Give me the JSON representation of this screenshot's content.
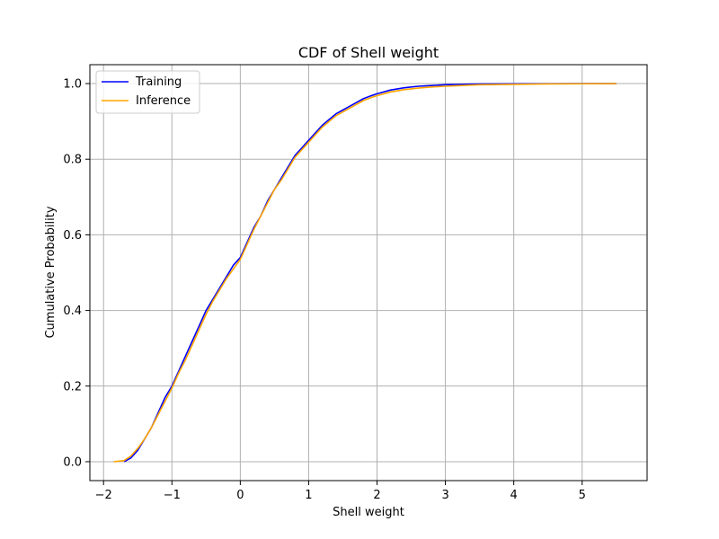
{
  "chart_data": {
    "type": "line",
    "title": "CDF of Shell weight",
    "xlabel": "Shell weight",
    "ylabel": "Cumulative Probability",
    "xlim": [
      -2.2,
      5.95
    ],
    "ylim": [
      -0.05,
      1.05
    ],
    "xticks": [
      -2,
      -1,
      0,
      1,
      2,
      3,
      4,
      5
    ],
    "yticks": [
      0.0,
      0.2,
      0.4,
      0.6,
      0.8,
      1.0
    ],
    "xtick_labels": [
      "−2",
      "−1",
      "0",
      "1",
      "2",
      "3",
      "4",
      "5"
    ],
    "ytick_labels": [
      "0.0",
      "0.2",
      "0.4",
      "0.6",
      "0.8",
      "1.0"
    ],
    "grid": true,
    "legend_position": "top-left",
    "series": [
      {
        "name": "Training",
        "color": "#0000ff",
        "x": [
          -1.7,
          -1.6,
          -1.5,
          -1.4,
          -1.3,
          -1.2,
          -1.1,
          -1.0,
          -0.9,
          -0.8,
          -0.7,
          -0.6,
          -0.5,
          -0.4,
          -0.3,
          -0.2,
          -0.1,
          0.0,
          0.1,
          0.2,
          0.3,
          0.4,
          0.5,
          0.6,
          0.7,
          0.8,
          0.9,
          1.0,
          1.1,
          1.2,
          1.3,
          1.4,
          1.5,
          1.6,
          1.7,
          1.8,
          1.9,
          2.0,
          2.2,
          2.4,
          2.6,
          2.8,
          3.0,
          3.5,
          4.0,
          4.5,
          5.0,
          5.5
        ],
        "y": [
          0.0,
          0.01,
          0.03,
          0.06,
          0.09,
          0.13,
          0.17,
          0.2,
          0.24,
          0.28,
          0.32,
          0.36,
          0.4,
          0.43,
          0.46,
          0.49,
          0.52,
          0.54,
          0.58,
          0.62,
          0.65,
          0.69,
          0.72,
          0.75,
          0.78,
          0.81,
          0.83,
          0.85,
          0.87,
          0.89,
          0.905,
          0.92,
          0.93,
          0.94,
          0.95,
          0.96,
          0.967,
          0.973,
          0.983,
          0.989,
          0.993,
          0.995,
          0.997,
          0.999,
          0.9995,
          0.9998,
          0.9999,
          1.0
        ]
      },
      {
        "name": "Inference",
        "color": "#ffa500",
        "x": [
          -1.85,
          -1.7,
          -1.6,
          -1.5,
          -1.4,
          -1.3,
          -1.2,
          -1.1,
          -1.0,
          -0.9,
          -0.8,
          -0.7,
          -0.6,
          -0.5,
          -0.4,
          -0.3,
          -0.2,
          -0.1,
          0.0,
          0.1,
          0.2,
          0.3,
          0.4,
          0.5,
          0.6,
          0.7,
          0.8,
          0.9,
          1.0,
          1.1,
          1.2,
          1.3,
          1.4,
          1.5,
          1.6,
          1.7,
          1.8,
          1.9,
          2.0,
          2.2,
          2.4,
          2.6,
          2.8,
          3.0,
          3.5,
          4.0,
          4.5,
          5.0,
          5.5
        ],
        "y": [
          0.0,
          0.003,
          0.015,
          0.035,
          0.06,
          0.09,
          0.125,
          0.16,
          0.195,
          0.235,
          0.27,
          0.31,
          0.35,
          0.39,
          0.425,
          0.455,
          0.485,
          0.51,
          0.535,
          0.575,
          0.615,
          0.65,
          0.685,
          0.72,
          0.745,
          0.775,
          0.805,
          0.825,
          0.845,
          0.865,
          0.885,
          0.9,
          0.915,
          0.925,
          0.935,
          0.945,
          0.955,
          0.962,
          0.968,
          0.978,
          0.984,
          0.988,
          0.991,
          0.993,
          0.997,
          0.998,
          0.999,
          0.9995,
          1.0
        ]
      }
    ]
  }
}
